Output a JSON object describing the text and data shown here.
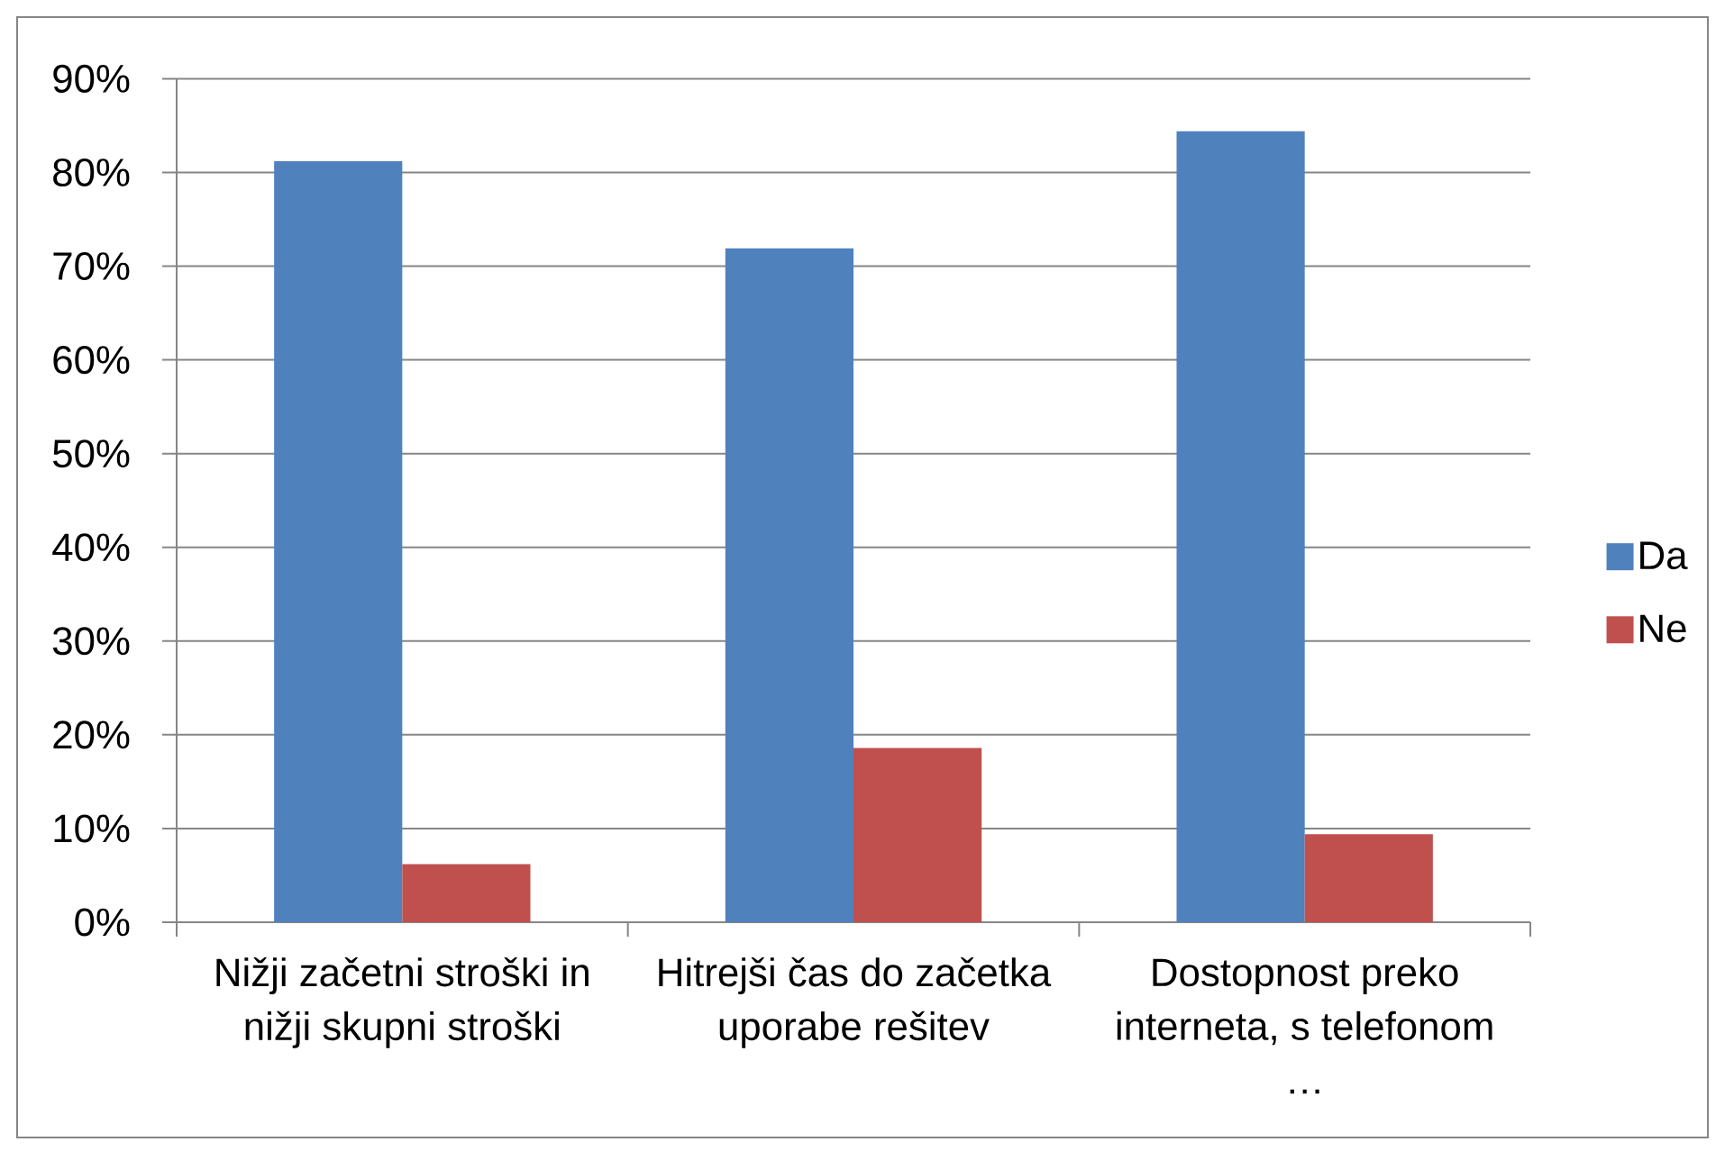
{
  "chart_data": {
    "type": "bar",
    "categories": [
      "Nižji začetni stroški in nižji skupni stroški",
      "Hitrejši čas do začetka uporabe rešitev",
      "Dostopnost preko interneta, s telefonom …"
    ],
    "series": [
      {
        "name": "Da",
        "color": "#4f81bd",
        "values": [
          81.2,
          71.9,
          84.4
        ]
      },
      {
        "name": "Ne",
        "color": "#c0504d",
        "values": [
          6.2,
          18.6,
          9.4
        ]
      }
    ],
    "ylim": [
      0,
      90
    ],
    "yticks": [
      {
        "value": 0,
        "label": "0%"
      },
      {
        "value": 10,
        "label": "10%"
      },
      {
        "value": 20,
        "label": "20%"
      },
      {
        "value": 30,
        "label": "30%"
      },
      {
        "value": 40,
        "label": "40%"
      },
      {
        "value": 50,
        "label": "50%"
      },
      {
        "value": 60,
        "label": "60%"
      },
      {
        "value": 70,
        "label": "70%"
      },
      {
        "value": 80,
        "label": "80%"
      },
      {
        "value": 90,
        "label": "90%"
      }
    ],
    "grid": "y",
    "legend": "right"
  }
}
